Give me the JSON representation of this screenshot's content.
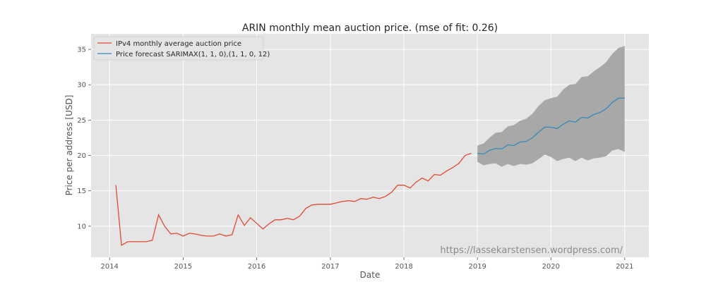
{
  "chart_data": {
    "type": "line",
    "title": "ARIN monthly mean auction price. (mse of fit: 0.26)",
    "xlabel": "Date",
    "ylabel": "Price per address [USD]",
    "xlim": [
      "2013-10-01",
      "2021-05-01"
    ],
    "ylim": [
      5.6,
      37.2
    ],
    "x_ticks": [
      {
        "date": "2014-01-01",
        "label": "2014"
      },
      {
        "date": "2015-01-01",
        "label": "2015"
      },
      {
        "date": "2016-01-01",
        "label": "2016"
      },
      {
        "date": "2017-01-01",
        "label": "2017"
      },
      {
        "date": "2018-01-01",
        "label": "2018"
      },
      {
        "date": "2019-01-01",
        "label": "2019"
      },
      {
        "date": "2020-01-01",
        "label": "2020"
      },
      {
        "date": "2021-01-01",
        "label": "2021"
      }
    ],
    "y_ticks": [
      {
        "value": 10,
        "label": "10"
      },
      {
        "value": 15,
        "label": "15"
      },
      {
        "value": 20,
        "label": "20"
      },
      {
        "value": 25,
        "label": "25"
      },
      {
        "value": 30,
        "label": "30"
      },
      {
        "value": 35,
        "label": "35"
      }
    ],
    "grid": true,
    "legend_position": "top-left",
    "background_color": "#e5e5e5",
    "colors": {
      "observed": "#e24a33",
      "forecast": "#348abd",
      "band": "#a8a8a8"
    },
    "watermark": "https://lassekarstensen.wordpress.com/",
    "series": [
      {
        "name": "IPv4 monthly average auction price",
        "color": "#e24a33",
        "x": [
          "2014-02-01",
          "2014-03-01",
          "2014-04-01",
          "2014-05-01",
          "2014-06-01",
          "2014-07-01",
          "2014-08-01",
          "2014-09-01",
          "2014-10-01",
          "2014-11-01",
          "2014-12-01",
          "2015-01-01",
          "2015-02-01",
          "2015-03-01",
          "2015-04-01",
          "2015-05-01",
          "2015-06-01",
          "2015-07-01",
          "2015-08-01",
          "2015-09-01",
          "2015-10-01",
          "2015-11-01",
          "2015-12-01",
          "2016-01-01",
          "2016-02-01",
          "2016-03-01",
          "2016-04-01",
          "2016-05-01",
          "2016-06-01",
          "2016-07-01",
          "2016-08-01",
          "2016-09-01",
          "2016-10-01",
          "2016-11-01",
          "2016-12-01",
          "2017-01-01",
          "2017-02-01",
          "2017-03-01",
          "2017-04-01",
          "2017-05-01",
          "2017-06-01",
          "2017-07-01",
          "2017-08-01",
          "2017-09-01",
          "2017-10-01",
          "2017-11-01",
          "2017-12-01",
          "2018-01-01",
          "2018-02-01",
          "2018-03-01",
          "2018-04-01",
          "2018-05-01",
          "2018-06-01",
          "2018-07-01",
          "2018-08-01",
          "2018-09-01",
          "2018-10-01",
          "2018-11-01",
          "2018-12-01"
        ],
        "values": [
          15.8,
          7.3,
          7.8,
          7.8,
          7.8,
          7.8,
          8.0,
          11.6,
          10.0,
          8.9,
          9.0,
          8.6,
          9.0,
          8.9,
          8.7,
          8.6,
          8.6,
          8.9,
          8.6,
          8.8,
          11.6,
          10.1,
          11.2,
          10.4,
          9.6,
          10.3,
          10.9,
          10.9,
          11.1,
          10.9,
          11.4,
          12.5,
          13.0,
          13.1,
          13.1,
          13.1,
          13.3,
          13.5,
          13.6,
          13.5,
          13.9,
          13.8,
          14.1,
          13.9,
          14.2,
          14.8,
          15.8,
          15.8,
          15.4,
          16.2,
          16.8,
          16.4,
          17.3,
          17.2,
          17.8,
          18.3,
          18.9,
          20.0,
          20.3
        ]
      },
      {
        "name": "Price forecast SARIMAX(1, 1, 0),(1, 1, 0, 12)",
        "color": "#348abd",
        "x": [
          "2019-01-01",
          "2019-02-01",
          "2019-03-01",
          "2019-04-01",
          "2019-05-01",
          "2019-06-01",
          "2019-07-01",
          "2019-08-01",
          "2019-09-01",
          "2019-10-01",
          "2019-11-01",
          "2019-12-01",
          "2020-01-01",
          "2020-02-01",
          "2020-03-01",
          "2020-04-01",
          "2020-05-01",
          "2020-06-01",
          "2020-07-01",
          "2020-08-01",
          "2020-09-01",
          "2020-10-01",
          "2020-11-01",
          "2020-12-01",
          "2021-01-01"
        ],
        "values": [
          20.3,
          20.2,
          20.7,
          21.0,
          20.9,
          21.5,
          21.4,
          21.9,
          22.0,
          22.5,
          23.3,
          24.0,
          24.0,
          23.8,
          24.4,
          24.9,
          24.7,
          25.4,
          25.3,
          25.8,
          26.1,
          26.6,
          27.5,
          28.1,
          28.1
        ],
        "lower": [
          19.1,
          18.6,
          18.8,
          18.9,
          18.4,
          18.8,
          18.5,
          18.8,
          18.7,
          18.9,
          19.5,
          20.1,
          19.8,
          19.2,
          19.5,
          19.7,
          19.2,
          19.7,
          19.3,
          19.6,
          19.7,
          19.9,
          20.7,
          20.9,
          20.5
        ],
        "upper": [
          21.4,
          21.7,
          22.5,
          23.2,
          23.3,
          24.1,
          24.3,
          24.9,
          25.2,
          25.9,
          27.0,
          27.8,
          28.1,
          28.3,
          29.3,
          30.0,
          30.1,
          31.1,
          31.2,
          31.9,
          32.5,
          33.2,
          34.4,
          35.2,
          35.5
        ]
      }
    ]
  }
}
